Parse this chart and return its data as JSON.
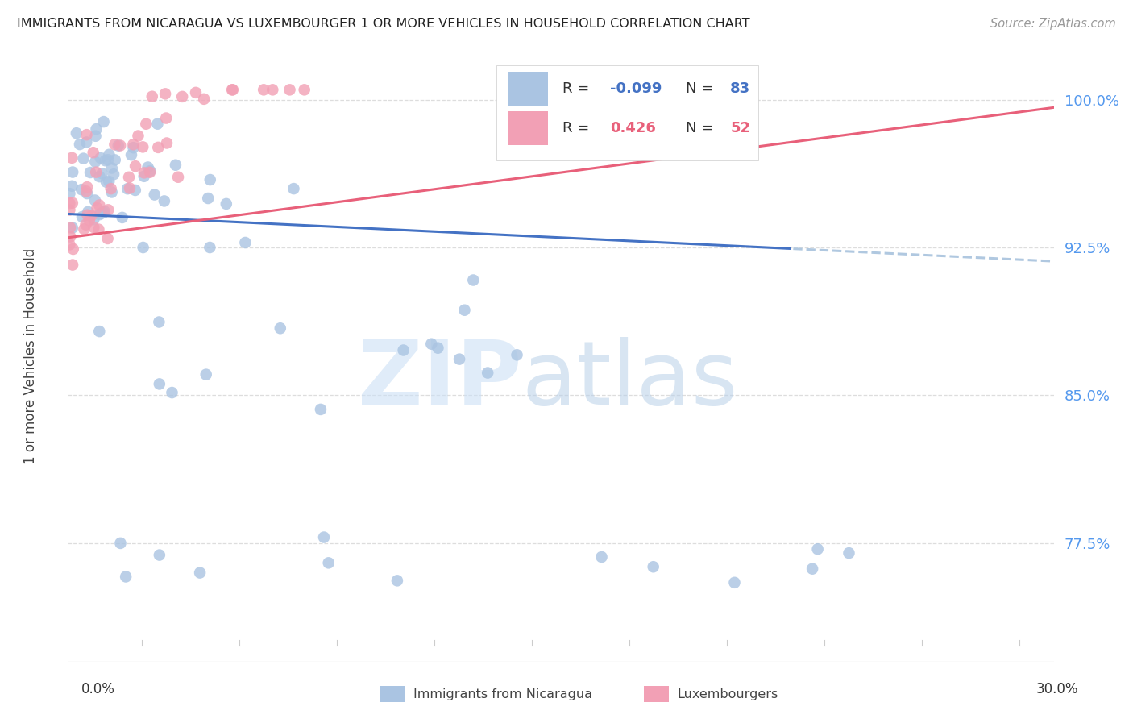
{
  "title": "IMMIGRANTS FROM NICARAGUA VS LUXEMBOURGER 1 OR MORE VEHICLES IN HOUSEHOLD CORRELATION CHART",
  "source": "Source: ZipAtlas.com",
  "ylabel": "1 or more Vehicles in Household",
  "xlim": [
    0.0,
    0.3
  ],
  "ylim": [
    0.715,
    1.025
  ],
  "yticks": [
    0.775,
    0.85,
    0.925,
    1.0
  ],
  "ytick_labels": [
    "77.5%",
    "85.0%",
    "92.5%",
    "100.0%"
  ],
  "legend_r_nicaragua": "-0.099",
  "legend_n_nicaragua": "83",
  "legend_r_luxembourg": "0.426",
  "legend_n_luxembourg": "52",
  "color_nicaragua": "#aac4e2",
  "color_luxembourg": "#f2a0b5",
  "color_line_nicaragua": "#4472c4",
  "color_line_luxembourg": "#e8607a",
  "color_dashed": "#b0c8e0",
  "title_color": "#222222",
  "source_color": "#999999",
  "ylabel_color": "#444444",
  "tick_color_y": "#5599ee",
  "grid_color": "#dddddd",
  "watermark_zip_color": "#cce0f5",
  "watermark_atlas_color": "#b8d0e8"
}
